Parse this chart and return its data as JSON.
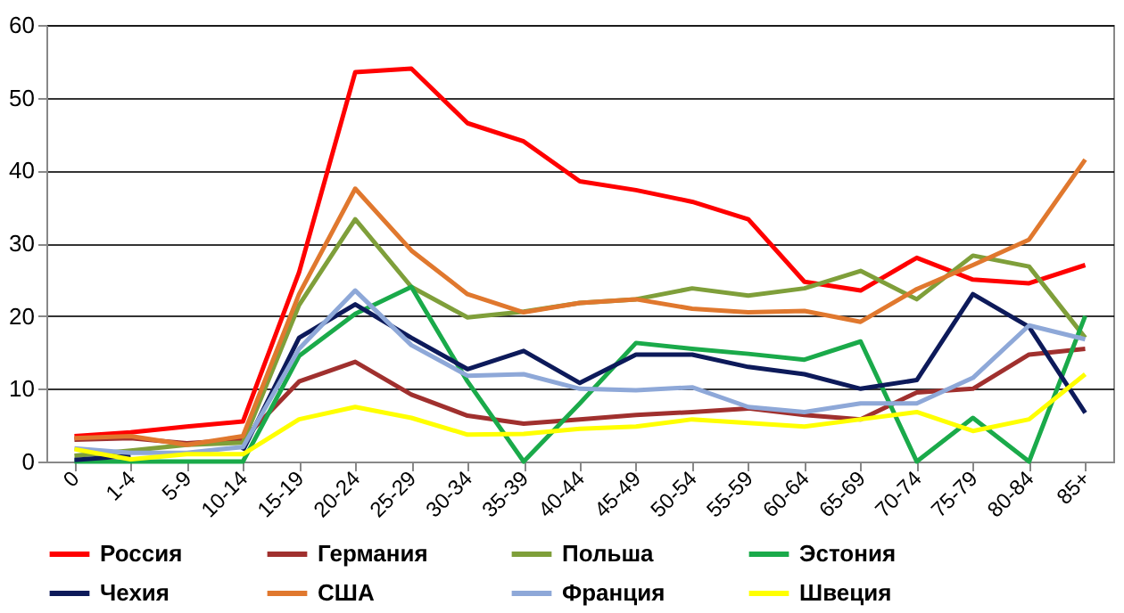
{
  "chart_data": {
    "type": "line",
    "categories": [
      "0",
      "1-4",
      "5-9",
      "10-14",
      "15-19",
      "20-24",
      "25-29",
      "30-34",
      "35-39",
      "40-44",
      "45-49",
      "50-54",
      "55-59",
      "60-64",
      "65-69",
      "70-74",
      "75-79",
      "80-84",
      "85+"
    ],
    "ylim": [
      0,
      60
    ],
    "yticks": [
      0,
      10,
      20,
      30,
      40,
      50,
      60
    ],
    "grid": "y",
    "legend": "bottom",
    "series": [
      {
        "name": "Россия",
        "color": "#ff0000",
        "values": [
          3.5,
          4,
          4.8,
          5.5,
          26,
          53.5,
          54,
          46.5,
          44,
          38.5,
          37.3,
          35.7,
          33.3,
          24.7,
          23.5,
          28,
          25,
          24.5,
          27
        ]
      },
      {
        "name": "Германия",
        "color": "#a0302e",
        "values": [
          3,
          3.2,
          2.5,
          3,
          11,
          13.7,
          9.2,
          6.3,
          5.2,
          5.8,
          6.4,
          6.8,
          7.3,
          6.4,
          5.8,
          9.5,
          10,
          14.7,
          15.5
        ]
      },
      {
        "name": "Польша",
        "color": "#7f9f3a",
        "values": [
          0.8,
          1.5,
          2.3,
          2.6,
          21.5,
          33.3,
          24,
          19.8,
          20.6,
          21.8,
          22.3,
          23.8,
          22.8,
          23.8,
          26.2,
          22.3,
          28.3,
          26.8,
          17
        ]
      },
      {
        "name": "Эстония",
        "color": "#1aaa4a",
        "values": [
          0,
          0,
          0,
          0,
          14.5,
          20.3,
          24,
          11,
          0,
          8,
          16.3,
          15.5,
          14.8,
          14,
          16.5,
          0,
          6,
          0,
          20
        ]
      },
      {
        "name": "Чехия",
        "color": "#0d1a5a",
        "values": [
          0.2,
          0.8,
          null,
          1.5,
          17,
          21.6,
          17,
          12.7,
          15.2,
          10.8,
          14.7,
          14.7,
          13,
          12,
          10,
          11.2,
          23,
          18.5,
          6.7
        ]
      },
      {
        "name": "США",
        "color": "#e0782e",
        "values": [
          3.2,
          3.5,
          2.3,
          3.5,
          23,
          37.5,
          29,
          23,
          20.5,
          21.8,
          22.3,
          21,
          20.5,
          20.7,
          19.2,
          23.7,
          27,
          30.5,
          41.5
        ]
      },
      {
        "name": "Франция",
        "color": "#8ea8d8",
        "values": [
          1.8,
          1.2,
          1.2,
          2,
          15.5,
          23.5,
          16,
          11.8,
          12,
          10,
          9.8,
          10.2,
          7.5,
          6.8,
          8,
          8,
          11.5,
          18.7,
          16.8
        ]
      },
      {
        "name": "Швеция",
        "color": "#ffff00",
        "values": [
          1.7,
          0.3,
          1,
          1,
          5.8,
          7.5,
          6,
          3.7,
          3.8,
          4.5,
          4.8,
          5.8,
          5.3,
          4.8,
          5.8,
          6.8,
          4.2,
          5.8,
          12
        ]
      }
    ]
  }
}
